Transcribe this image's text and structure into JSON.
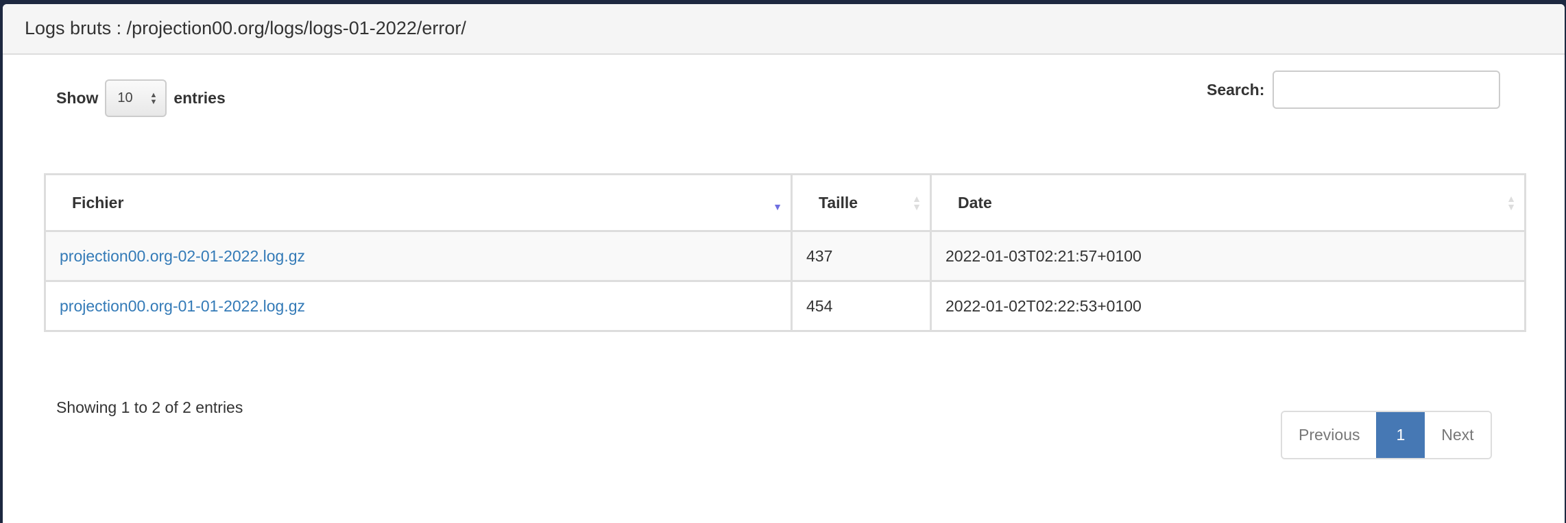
{
  "panel": {
    "title": "Logs bruts : /projection00.org/logs/logs-01-2022/error/"
  },
  "length": {
    "show_label": "Show",
    "value": "10",
    "entries_label": "entries"
  },
  "search": {
    "label": "Search:",
    "value": "",
    "placeholder": ""
  },
  "table": {
    "columns": [
      {
        "label": "Fichier",
        "sort": "descending"
      },
      {
        "label": "Taille",
        "sort": "none"
      },
      {
        "label": "Date",
        "sort": "none"
      }
    ],
    "rows": [
      {
        "file": "projection00.org-02-01-2022.log.gz",
        "size": "437",
        "date": "2022-01-03T02:21:57+0100"
      },
      {
        "file": "projection00.org-01-01-2022.log.gz",
        "size": "454",
        "date": "2022-01-02T02:22:53+0100"
      }
    ]
  },
  "info": "Showing 1 to 2 of 2 entries",
  "pagination": {
    "previous": "Previous",
    "current": "1",
    "next": "Next"
  },
  "colors": {
    "link": "#337ab7",
    "active_page": "#4678b4",
    "sort_active": "#6f6fe0"
  }
}
